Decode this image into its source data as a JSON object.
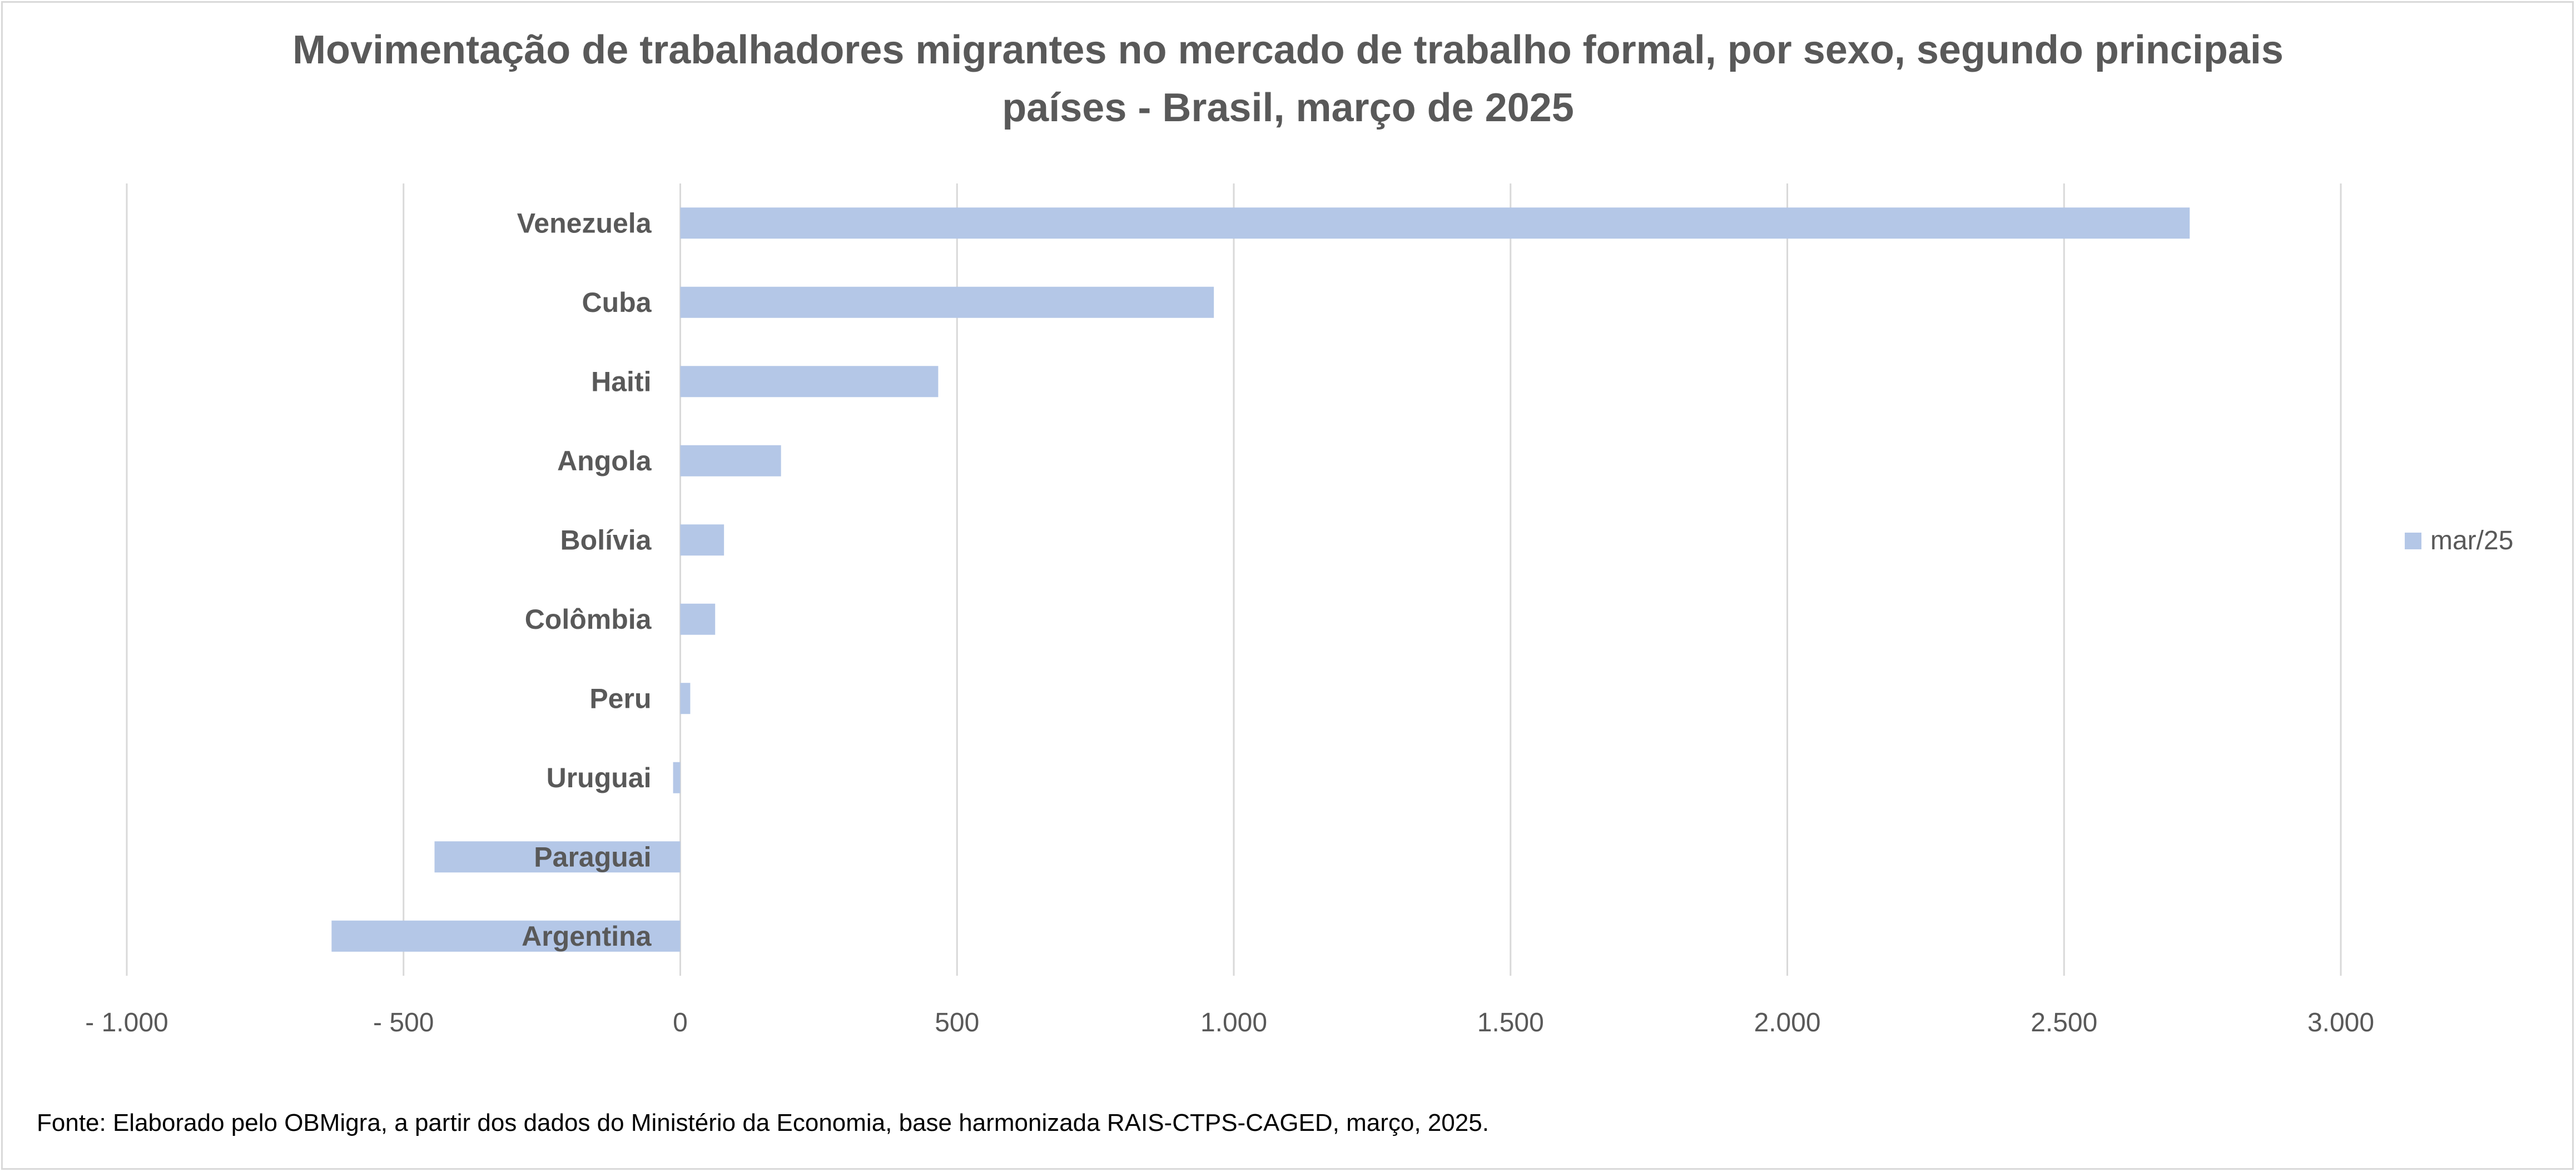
{
  "chart_data": {
    "type": "bar",
    "orientation": "horizontal",
    "title_lines": [
      "Movimentação de trabalhadores migrantes no mercado de trabalho formal, por sexo, segundo principais",
      "países - Brasil, março de 2025"
    ],
    "categories": [
      "Venezuela",
      "Cuba",
      "Haiti",
      "Angola",
      "Bolívia",
      "Colômbia",
      "Peru",
      "Uruguai",
      "Paraguai",
      "Argentina"
    ],
    "series": [
      {
        "name": "mar/25",
        "values": [
          2727,
          964,
          466,
          182,
          79,
          63,
          18,
          -13,
          -444,
          -630
        ]
      }
    ],
    "xlim": [
      -1000,
      3000
    ],
    "ticks": [
      -1000,
      -500,
      0,
      500,
      1000,
      1500,
      2000,
      2500,
      3000
    ],
    "tick_labels": [
      "- 1.000",
      "- 500",
      "0",
      "500",
      "1.000",
      "1.500",
      "2.000",
      "2.500",
      "3.000"
    ],
    "grid": true,
    "legend": "right",
    "bar_color": "#b4c7e7",
    "grid_color": "#d9d9d9",
    "text_color": "#595959"
  },
  "source_note": "Fonte: Elaborado pelo OBMigra, a partir dos dados do Ministério da Economia, base harmonizada RAIS-CTPS-CAGED, março, 2025."
}
